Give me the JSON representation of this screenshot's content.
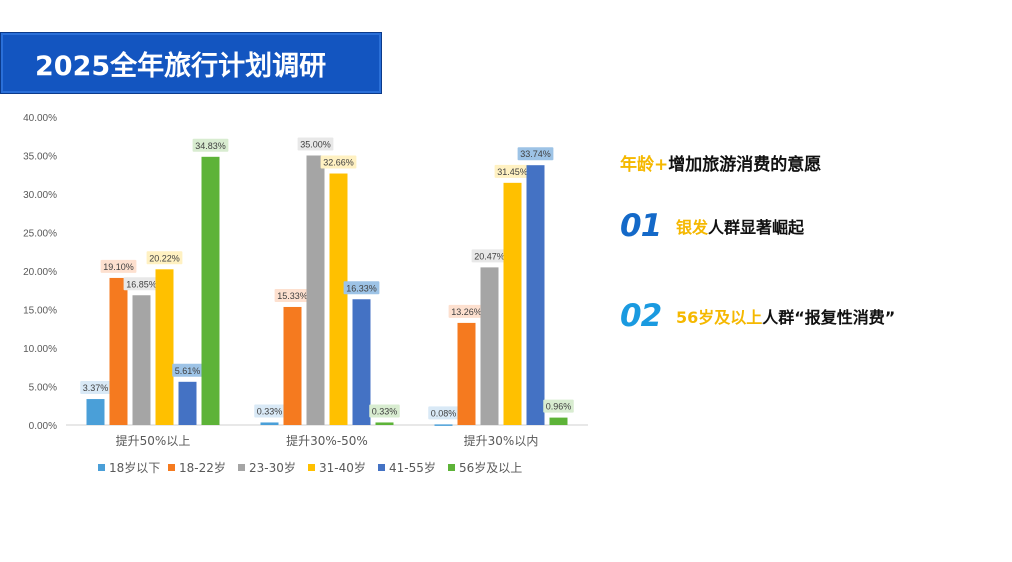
{
  "banner": {
    "title": "2025全年旅行计划调研"
  },
  "right": {
    "headline_hl": "年龄+",
    "headline_rest": "增加旅游消费的意愿",
    "points": [
      {
        "num": "01",
        "hl": "银发",
        "rest": "人群显著崛起",
        "num_color": "#1469c8"
      },
      {
        "num": "02",
        "hl": "56岁及以上",
        "rest": "人群“报复性消费”",
        "num_color": "#1a9ae0"
      }
    ]
  },
  "chart_data": {
    "type": "bar",
    "categories": [
      "提升50%以上",
      "提升30%-50%",
      "提升30%以内"
    ],
    "yticks": [
      "0.00%",
      "5.00%",
      "10.00%",
      "15.00%",
      "20.00%",
      "25.00%",
      "30.00%",
      "35.00%",
      "40.00%"
    ],
    "ylim": [
      0,
      40
    ],
    "series": [
      {
        "name": "18岁以下",
        "color": "#4a9fd8",
        "label_bg": "#d9e9f6",
        "values": [
          3.37,
          0.33,
          0.08
        ],
        "labels": [
          "3.37%",
          "0.33%",
          "0.08%"
        ]
      },
      {
        "name": "18-22岁",
        "color": "#f57a1f",
        "label_bg": "#fde0cf",
        "values": [
          19.1,
          15.33,
          13.26
        ],
        "labels": [
          "19.10%",
          "15.33%",
          "13.26%"
        ]
      },
      {
        "name": "23-30岁",
        "color": "#a5a5a5",
        "label_bg": "#e8e8e8",
        "values": [
          16.85,
          35.0,
          20.47
        ],
        "labels": [
          "16.85%",
          "35.00%",
          "20.47%"
        ]
      },
      {
        "name": "31-40岁",
        "color": "#ffc000",
        "label_bg": "#fff1c2",
        "values": [
          20.22,
          32.66,
          31.45
        ],
        "labels": [
          "20.22%",
          "32.66%",
          "31.45%"
        ]
      },
      {
        "name": "41-55岁",
        "color": "#4472c4",
        "label_bg": "#9dc3e6",
        "values": [
          5.61,
          16.33,
          33.74
        ],
        "labels": [
          "5.61%",
          "16.33%",
          "33.74%"
        ]
      },
      {
        "name": "56岁及以上",
        "color": "#5db338",
        "label_bg": "#d8ecd0",
        "values": [
          34.83,
          0.33,
          0.96
        ],
        "labels": [
          "34.83%",
          "0.33%",
          "0.96%"
        ]
      }
    ],
    "legend_position": "bottom",
    "grid": false
  }
}
